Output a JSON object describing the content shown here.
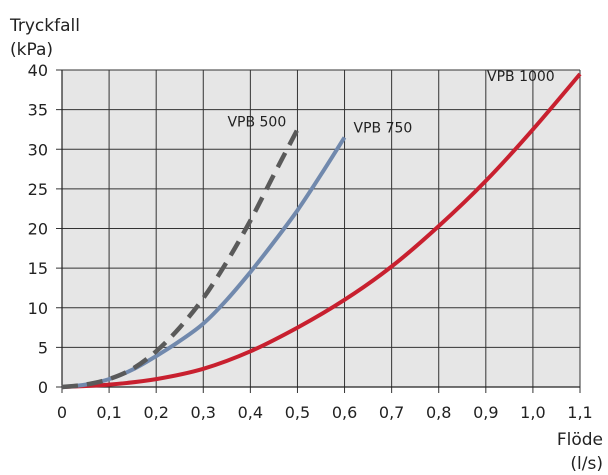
{
  "chart_data": {
    "type": "line",
    "ylabel": [
      "Tryckfall",
      "(kPa)"
    ],
    "xlabel": [
      "Flöde",
      "(l/s)"
    ],
    "xlim": [
      0,
      1.1
    ],
    "ylim": [
      0,
      40
    ],
    "x_ticks": [
      "0",
      "0,1",
      "0,2",
      "0,3",
      "0,4",
      "0,5",
      "0,6",
      "0,7",
      "0,8",
      "0,9",
      "1,0",
      "1,1"
    ],
    "y_ticks": [
      "0",
      "5",
      "10",
      "15",
      "20",
      "25",
      "30",
      "35",
      "40"
    ],
    "grid": true,
    "series": [
      {
        "name": "VPB 500",
        "style": "dashed",
        "color": "#5a5a5a",
        "x": [
          0,
          0.05,
          0.1,
          0.15,
          0.2,
          0.25,
          0.3,
          0.35,
          0.4,
          0.45,
          0.5
        ],
        "y": [
          0,
          0.3,
          1.0,
          2.3,
          4.5,
          7.5,
          11.2,
          15.8,
          21.0,
          26.8,
          32.5
        ]
      },
      {
        "name": "VPB 750",
        "style": "solid",
        "color": "#7189ad",
        "x": [
          0,
          0.05,
          0.1,
          0.15,
          0.2,
          0.25,
          0.3,
          0.35,
          0.4,
          0.45,
          0.5,
          0.55,
          0.6
        ],
        "y": [
          0,
          0.3,
          1.0,
          2.2,
          3.9,
          5.8,
          8.0,
          11.0,
          14.5,
          18.3,
          22.3,
          26.8,
          31.5
        ]
      },
      {
        "name": "VPB 1000",
        "style": "solid",
        "color": "#c8202f",
        "x": [
          0,
          0.1,
          0.2,
          0.3,
          0.4,
          0.5,
          0.6,
          0.7,
          0.8,
          0.9,
          1.0,
          1.1
        ],
        "y": [
          0,
          0.3,
          1.0,
          2.3,
          4.5,
          7.5,
          11.0,
          15.2,
          20.3,
          26.0,
          32.5,
          39.5
        ]
      }
    ],
    "annotations": [
      "VPB 500",
      "VPB 750",
      "VPB 1000"
    ]
  }
}
